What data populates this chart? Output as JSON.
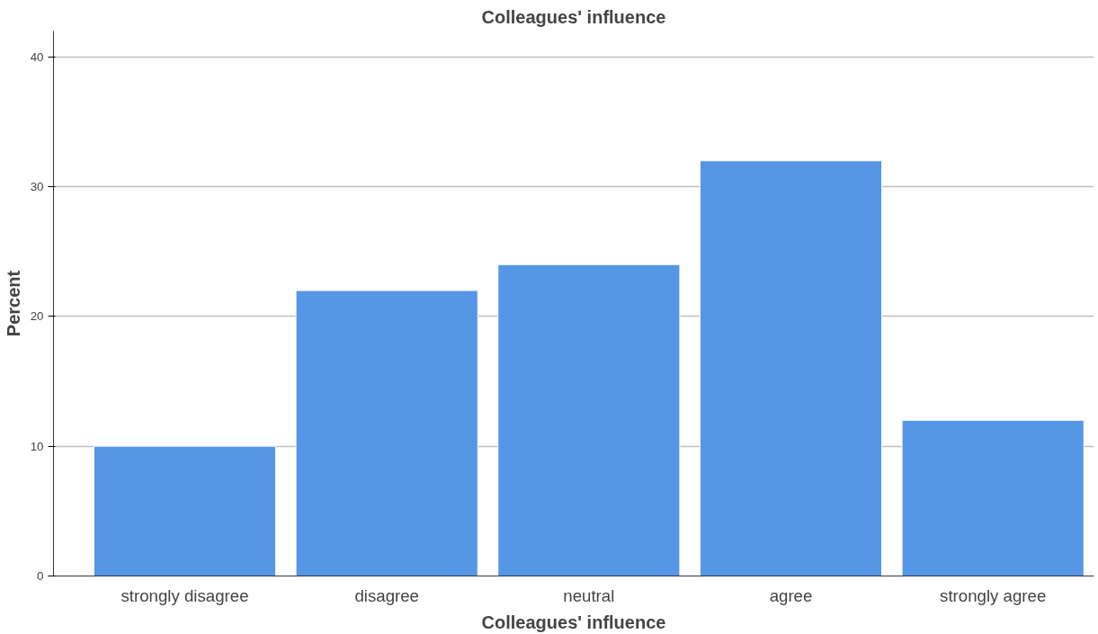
{
  "chart_data": {
    "type": "bar",
    "title": "Colleagues' influence",
    "xlabel": "Colleagues' influence",
    "ylabel": "Percent",
    "categories": [
      "strongly disagree",
      "disagree",
      "neutral",
      "agree",
      "strongly agree"
    ],
    "values": [
      10,
      22,
      24,
      32,
      12
    ],
    "color": "#5596e6",
    "ylim": [
      0,
      42
    ],
    "yticks": [
      0,
      10,
      20,
      30,
      40
    ],
    "grid": "y"
  }
}
